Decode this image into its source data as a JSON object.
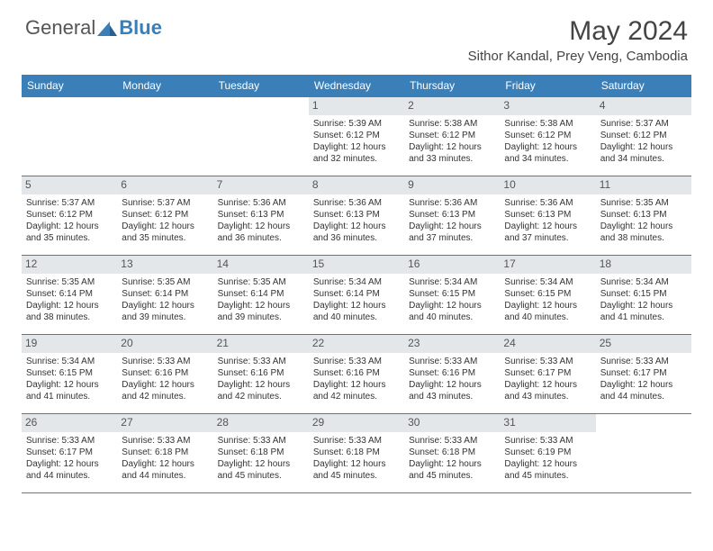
{
  "logo": {
    "general": "General",
    "blue": "Blue"
  },
  "title": "May 2024",
  "location": "Sithor Kandal, Prey Veng, Cambodia",
  "colors": {
    "header_bg": "#3a7fb8",
    "header_text": "#ffffff",
    "daynum_bg": "#e3e7ea",
    "border": "#3a7fb8",
    "logo_blue": "#3a7fb8",
    "body_text": "#333333"
  },
  "day_names": [
    "Sunday",
    "Monday",
    "Tuesday",
    "Wednesday",
    "Thursday",
    "Friday",
    "Saturday"
  ],
  "weeks": [
    [
      null,
      null,
      null,
      {
        "n": "1",
        "sr": "Sunrise: 5:39 AM",
        "ss": "Sunset: 6:12 PM",
        "d1": "Daylight: 12 hours",
        "d2": "and 32 minutes."
      },
      {
        "n": "2",
        "sr": "Sunrise: 5:38 AM",
        "ss": "Sunset: 6:12 PM",
        "d1": "Daylight: 12 hours",
        "d2": "and 33 minutes."
      },
      {
        "n": "3",
        "sr": "Sunrise: 5:38 AM",
        "ss": "Sunset: 6:12 PM",
        "d1": "Daylight: 12 hours",
        "d2": "and 34 minutes."
      },
      {
        "n": "4",
        "sr": "Sunrise: 5:37 AM",
        "ss": "Sunset: 6:12 PM",
        "d1": "Daylight: 12 hours",
        "d2": "and 34 minutes."
      }
    ],
    [
      {
        "n": "5",
        "sr": "Sunrise: 5:37 AM",
        "ss": "Sunset: 6:12 PM",
        "d1": "Daylight: 12 hours",
        "d2": "and 35 minutes."
      },
      {
        "n": "6",
        "sr": "Sunrise: 5:37 AM",
        "ss": "Sunset: 6:12 PM",
        "d1": "Daylight: 12 hours",
        "d2": "and 35 minutes."
      },
      {
        "n": "7",
        "sr": "Sunrise: 5:36 AM",
        "ss": "Sunset: 6:13 PM",
        "d1": "Daylight: 12 hours",
        "d2": "and 36 minutes."
      },
      {
        "n": "8",
        "sr": "Sunrise: 5:36 AM",
        "ss": "Sunset: 6:13 PM",
        "d1": "Daylight: 12 hours",
        "d2": "and 36 minutes."
      },
      {
        "n": "9",
        "sr": "Sunrise: 5:36 AM",
        "ss": "Sunset: 6:13 PM",
        "d1": "Daylight: 12 hours",
        "d2": "and 37 minutes."
      },
      {
        "n": "10",
        "sr": "Sunrise: 5:36 AM",
        "ss": "Sunset: 6:13 PM",
        "d1": "Daylight: 12 hours",
        "d2": "and 37 minutes."
      },
      {
        "n": "11",
        "sr": "Sunrise: 5:35 AM",
        "ss": "Sunset: 6:13 PM",
        "d1": "Daylight: 12 hours",
        "d2": "and 38 minutes."
      }
    ],
    [
      {
        "n": "12",
        "sr": "Sunrise: 5:35 AM",
        "ss": "Sunset: 6:14 PM",
        "d1": "Daylight: 12 hours",
        "d2": "and 38 minutes."
      },
      {
        "n": "13",
        "sr": "Sunrise: 5:35 AM",
        "ss": "Sunset: 6:14 PM",
        "d1": "Daylight: 12 hours",
        "d2": "and 39 minutes."
      },
      {
        "n": "14",
        "sr": "Sunrise: 5:35 AM",
        "ss": "Sunset: 6:14 PM",
        "d1": "Daylight: 12 hours",
        "d2": "and 39 minutes."
      },
      {
        "n": "15",
        "sr": "Sunrise: 5:34 AM",
        "ss": "Sunset: 6:14 PM",
        "d1": "Daylight: 12 hours",
        "d2": "and 40 minutes."
      },
      {
        "n": "16",
        "sr": "Sunrise: 5:34 AM",
        "ss": "Sunset: 6:15 PM",
        "d1": "Daylight: 12 hours",
        "d2": "and 40 minutes."
      },
      {
        "n": "17",
        "sr": "Sunrise: 5:34 AM",
        "ss": "Sunset: 6:15 PM",
        "d1": "Daylight: 12 hours",
        "d2": "and 40 minutes."
      },
      {
        "n": "18",
        "sr": "Sunrise: 5:34 AM",
        "ss": "Sunset: 6:15 PM",
        "d1": "Daylight: 12 hours",
        "d2": "and 41 minutes."
      }
    ],
    [
      {
        "n": "19",
        "sr": "Sunrise: 5:34 AM",
        "ss": "Sunset: 6:15 PM",
        "d1": "Daylight: 12 hours",
        "d2": "and 41 minutes."
      },
      {
        "n": "20",
        "sr": "Sunrise: 5:33 AM",
        "ss": "Sunset: 6:16 PM",
        "d1": "Daylight: 12 hours",
        "d2": "and 42 minutes."
      },
      {
        "n": "21",
        "sr": "Sunrise: 5:33 AM",
        "ss": "Sunset: 6:16 PM",
        "d1": "Daylight: 12 hours",
        "d2": "and 42 minutes."
      },
      {
        "n": "22",
        "sr": "Sunrise: 5:33 AM",
        "ss": "Sunset: 6:16 PM",
        "d1": "Daylight: 12 hours",
        "d2": "and 42 minutes."
      },
      {
        "n": "23",
        "sr": "Sunrise: 5:33 AM",
        "ss": "Sunset: 6:16 PM",
        "d1": "Daylight: 12 hours",
        "d2": "and 43 minutes."
      },
      {
        "n": "24",
        "sr": "Sunrise: 5:33 AM",
        "ss": "Sunset: 6:17 PM",
        "d1": "Daylight: 12 hours",
        "d2": "and 43 minutes."
      },
      {
        "n": "25",
        "sr": "Sunrise: 5:33 AM",
        "ss": "Sunset: 6:17 PM",
        "d1": "Daylight: 12 hours",
        "d2": "and 44 minutes."
      }
    ],
    [
      {
        "n": "26",
        "sr": "Sunrise: 5:33 AM",
        "ss": "Sunset: 6:17 PM",
        "d1": "Daylight: 12 hours",
        "d2": "and 44 minutes."
      },
      {
        "n": "27",
        "sr": "Sunrise: 5:33 AM",
        "ss": "Sunset: 6:18 PM",
        "d1": "Daylight: 12 hours",
        "d2": "and 44 minutes."
      },
      {
        "n": "28",
        "sr": "Sunrise: 5:33 AM",
        "ss": "Sunset: 6:18 PM",
        "d1": "Daylight: 12 hours",
        "d2": "and 45 minutes."
      },
      {
        "n": "29",
        "sr": "Sunrise: 5:33 AM",
        "ss": "Sunset: 6:18 PM",
        "d1": "Daylight: 12 hours",
        "d2": "and 45 minutes."
      },
      {
        "n": "30",
        "sr": "Sunrise: 5:33 AM",
        "ss": "Sunset: 6:18 PM",
        "d1": "Daylight: 12 hours",
        "d2": "and 45 minutes."
      },
      {
        "n": "31",
        "sr": "Sunrise: 5:33 AM",
        "ss": "Sunset: 6:19 PM",
        "d1": "Daylight: 12 hours",
        "d2": "and 45 minutes."
      },
      null
    ]
  ]
}
